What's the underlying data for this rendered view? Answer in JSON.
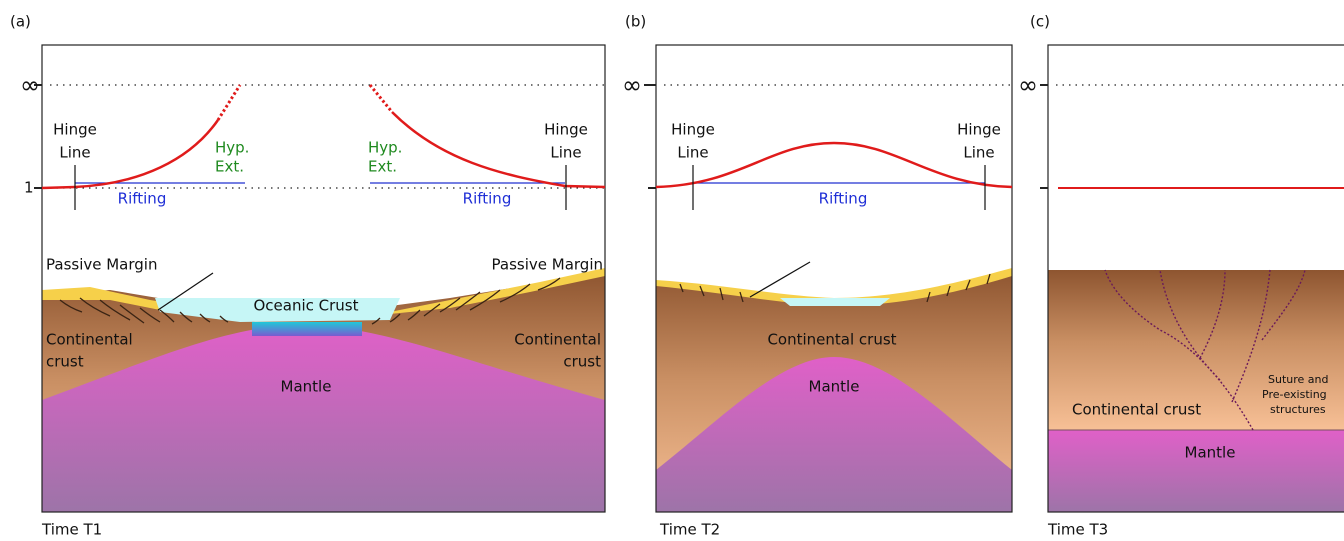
{
  "panels": [
    {
      "label": "(a)",
      "axis_top": "∞",
      "axis_one": "1",
      "hinge_left": [
        "Hinge",
        "Line"
      ],
      "hinge_right": [
        "Hinge",
        "Line"
      ],
      "hyp_left": [
        "Hyp.",
        "Ext."
      ],
      "hyp_right": [
        "Hyp.",
        "Ext."
      ],
      "rifting_left": "Rifting",
      "rifting_right": "Rifting",
      "passive_left": "Passive Margin",
      "passive_right": "Passive Margin",
      "oceanic": "Oceanic Crust",
      "crust_left": [
        "Continental",
        "crust"
      ],
      "crust_right": [
        "Continental",
        "crust"
      ],
      "mantle": "Mantle",
      "time": "Time T1"
    },
    {
      "label": "(b)",
      "axis_top": "∞",
      "hinge_left": [
        "Hinge",
        "Line"
      ],
      "hinge_right": [
        "Hinge",
        "Line"
      ],
      "rifting": "Rifting",
      "crust": "Continental crust",
      "mantle": "Mantle",
      "time": "Time T2"
    },
    {
      "label": "(c)",
      "axis_top": "∞",
      "crust": "Continental crust",
      "suture": [
        "Suture and",
        "Pre-existing",
        "structures"
      ],
      "mantle": "Mantle",
      "time": "Time T3"
    }
  ]
}
